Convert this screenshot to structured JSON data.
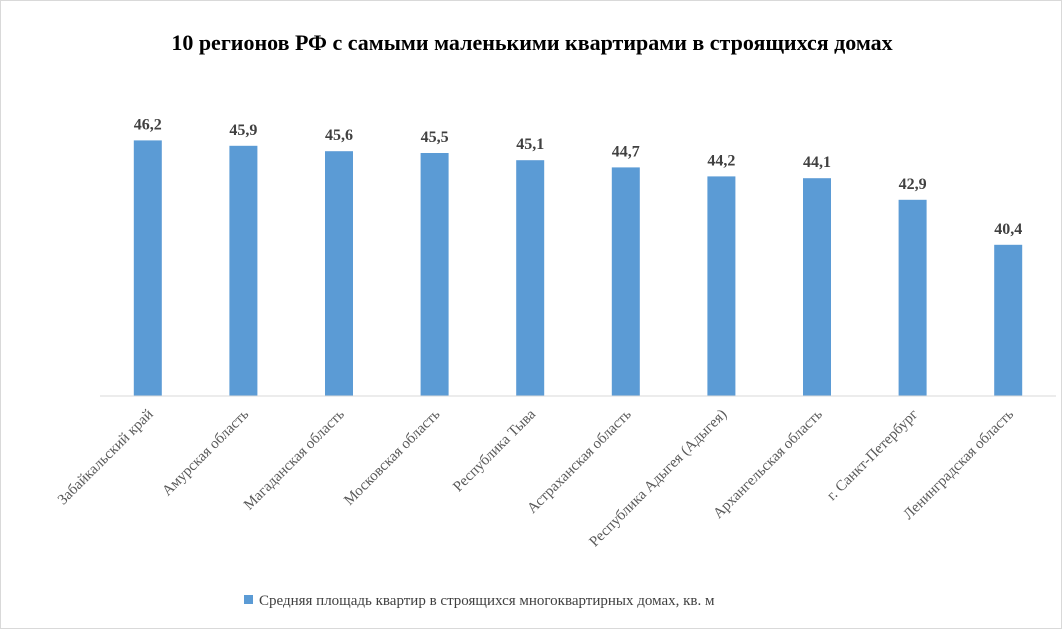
{
  "chart_data": {
    "type": "bar",
    "title": "10 регионов РФ с самыми маленькими квартирами в строящихся домах",
    "categories": [
      "Забайкальский край",
      "Амурская область",
      "Магаданская область",
      "Московская область",
      "Республика Тыва",
      "Астраханская область",
      "Республика Адыгея (Адыгея)",
      "Архангельская область",
      "г. Санкт-Петербург",
      "Ленинградская область"
    ],
    "series": [
      {
        "name": "Средняя площадь квартир в строящихся многоквартирных домах, кв. м",
        "values": [
          46.2,
          45.9,
          45.6,
          45.5,
          45.1,
          44.7,
          44.2,
          44.1,
          42.9,
          40.4
        ],
        "labels": [
          "46,2",
          "45,9",
          "45,6",
          "45,5",
          "45,1",
          "44,7",
          "44,2",
          "44,1",
          "42,9",
          "40,4"
        ]
      }
    ],
    "ylim": [
      32,
      47
    ],
    "xlabel": "",
    "ylabel": "",
    "grid": false,
    "legend_position": "bottom",
    "bar_color": "#5b9bd5",
    "axis_color": "#d9d9d9"
  }
}
